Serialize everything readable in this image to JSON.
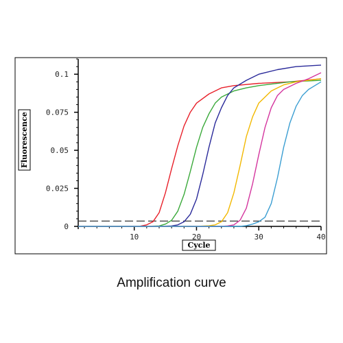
{
  "caption": "Amplification curve",
  "chart_data": {
    "type": "line",
    "title": "",
    "xlabel": "Cycle",
    "ylabel": "Fluorescence",
    "xlim": [
      1,
      40
    ],
    "ylim": [
      0,
      0.11
    ],
    "x_ticks": [
      10,
      20,
      30,
      40
    ],
    "y_ticks": [
      0,
      0.025,
      0.05,
      0.075,
      0.1
    ],
    "x_tick_labels": [
      "10",
      "20",
      "30",
      "40"
    ],
    "y_tick_labels": [
      "0",
      "0.025",
      "0.05",
      "0.075",
      "0.1"
    ],
    "threshold": 0.0035,
    "grid": false,
    "legend": "none",
    "series": [
      {
        "color": "#e8202a",
        "x": [
          1,
          4,
          8,
          11,
          12,
          13,
          14,
          15,
          16,
          17,
          18,
          19,
          20,
          22,
          24,
          26,
          30,
          35,
          40
        ],
        "y": [
          0,
          0,
          0,
          0.0002,
          0.001,
          0.003,
          0.009,
          0.022,
          0.038,
          0.053,
          0.066,
          0.075,
          0.081,
          0.087,
          0.091,
          0.0925,
          0.094,
          0.095,
          0.097
        ]
      },
      {
        "color": "#3aa93a",
        "x": [
          1,
          8,
          12,
          14,
          15,
          16,
          17,
          18,
          19,
          20,
          21,
          22,
          23,
          24,
          26,
          28,
          30,
          35,
          40
        ],
        "y": [
          0,
          0,
          0,
          0.0003,
          0.0015,
          0.004,
          0.01,
          0.021,
          0.036,
          0.052,
          0.065,
          0.074,
          0.081,
          0.085,
          0.089,
          0.091,
          0.0925,
          0.095,
          0.096
        ]
      },
      {
        "color": "#2a2a9a",
        "x": [
          1,
          10,
          14,
          16,
          17,
          18,
          19,
          20,
          21,
          22,
          23,
          24,
          25,
          26,
          28,
          30,
          33,
          36,
          40
        ],
        "y": [
          0,
          0,
          0,
          0.0003,
          0.001,
          0.003,
          0.008,
          0.018,
          0.034,
          0.052,
          0.068,
          0.078,
          0.086,
          0.091,
          0.096,
          0.1,
          0.103,
          0.105,
          0.106
        ]
      },
      {
        "color": "#f2b800",
        "x": [
          1,
          14,
          20,
          22,
          23,
          24,
          25,
          26,
          27,
          28,
          29,
          30,
          32,
          34,
          36,
          38,
          40
        ],
        "y": [
          0,
          0,
          0,
          0.0004,
          0.001,
          0.003,
          0.009,
          0.022,
          0.04,
          0.059,
          0.072,
          0.081,
          0.089,
          0.093,
          0.095,
          0.096,
          0.097
        ]
      },
      {
        "color": "#d4359e",
        "x": [
          1,
          18,
          24,
          25,
          26,
          27,
          28,
          29,
          30,
          31,
          32,
          33,
          34,
          36,
          38,
          40
        ],
        "y": [
          0,
          0,
          0,
          0.0003,
          0.001,
          0.004,
          0.012,
          0.028,
          0.047,
          0.065,
          0.078,
          0.086,
          0.09,
          0.094,
          0.097,
          0.101
        ]
      },
      {
        "color": "#3b9ed2",
        "x": [
          1,
          22,
          27,
          28,
          29,
          30,
          31,
          32,
          33,
          34,
          35,
          36,
          37,
          38,
          40
        ],
        "y": [
          0,
          0,
          0,
          0.0005,
          0.0015,
          0.003,
          0.006,
          0.015,
          0.032,
          0.052,
          0.068,
          0.079,
          0.086,
          0.09,
          0.095
        ]
      }
    ]
  }
}
